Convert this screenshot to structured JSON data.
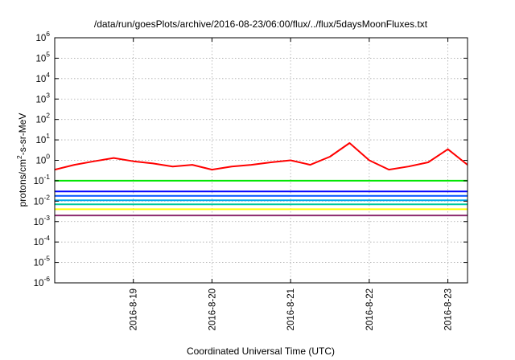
{
  "chart_data": {
    "type": "line",
    "title": "/data/run/goesPlots/archive/2016-08-23/06:00/flux/../flux/5daysMoonFluxes.txt",
    "xlabel": "Coordinated Universal Time (UTC)",
    "ylabel": {
      "prefix": "protons/cm",
      "sup": "2",
      "suffix": "-s-sr-MeV"
    },
    "y_scale": "log",
    "ylim": [
      1e-06,
      1000000.0
    ],
    "y_ticks": [
      {
        "base": "10",
        "exp": "-6",
        "value": 1e-06
      },
      {
        "base": "10",
        "exp": "-5",
        "value": 1e-05
      },
      {
        "base": "10",
        "exp": "-4",
        "value": 0.0001
      },
      {
        "base": "10",
        "exp": "-3",
        "value": 0.001
      },
      {
        "base": "10",
        "exp": "-2",
        "value": 0.01
      },
      {
        "base": "10",
        "exp": "-1",
        "value": 0.1
      },
      {
        "base": "10",
        "exp": "0",
        "value": 1
      },
      {
        "base": "10",
        "exp": "1",
        "value": 10
      },
      {
        "base": "10",
        "exp": "2",
        "value": 100
      },
      {
        "base": "10",
        "exp": "3",
        "value": 1000
      },
      {
        "base": "10",
        "exp": "4",
        "value": 10000
      },
      {
        "base": "10",
        "exp": "5",
        "value": 100000
      },
      {
        "base": "10",
        "exp": "6",
        "value": 1000000
      }
    ],
    "xlim": [
      "2016-08-18T00:00",
      "2016-08-23T06:00"
    ],
    "x_ticks": [
      "2016-8-19",
      "2016-8-20",
      "2016-8-21",
      "2016-8-22",
      "2016-8-23"
    ],
    "grid": true,
    "series": [
      {
        "color": "#ff0000",
        "x": [
          "2016-08-18T00:00",
          "2016-08-18T06:00",
          "2016-08-18T12:00",
          "2016-08-18T18:00",
          "2016-08-19T00:00",
          "2016-08-19T06:00",
          "2016-08-19T12:00",
          "2016-08-19T18:00",
          "2016-08-20T00:00",
          "2016-08-20T06:00",
          "2016-08-20T12:00",
          "2016-08-20T18:00",
          "2016-08-21T00:00",
          "2016-08-21T06:00",
          "2016-08-21T12:00",
          "2016-08-21T18:00",
          "2016-08-22T00:00",
          "2016-08-22T06:00",
          "2016-08-22T12:00",
          "2016-08-22T18:00",
          "2016-08-23T00:00",
          "2016-08-23T06:00"
        ],
        "values": [
          0.35,
          0.6,
          0.9,
          1.3,
          0.9,
          0.7,
          0.5,
          0.6,
          0.35,
          0.5,
          0.6,
          0.8,
          1.0,
          0.6,
          1.5,
          7,
          1.0,
          0.35,
          0.5,
          0.8,
          3.5,
          0.6
        ]
      },
      {
        "color": "#00e600",
        "x": [
          "2016-08-18T00:00",
          "2016-08-23T06:00"
        ],
        "values": [
          0.1,
          0.1
        ]
      },
      {
        "color": "#0000ff",
        "x": [
          "2016-08-18T00:00",
          "2016-08-23T06:00"
        ],
        "values": [
          0.03,
          0.03
        ]
      },
      {
        "color": "#0050ff",
        "x": [
          "2016-08-18T00:00",
          "2016-08-23T06:00"
        ],
        "values": [
          0.018,
          0.018
        ]
      },
      {
        "color": "#00aaee",
        "x": [
          "2016-08-18T00:00",
          "2016-08-23T06:00"
        ],
        "values": [
          0.011,
          0.011
        ]
      },
      {
        "color": "#00c8a0",
        "x": [
          "2016-08-18T00:00",
          "2016-08-23T06:00"
        ],
        "values": [
          0.007,
          0.007
        ]
      },
      {
        "color": "#ffff00",
        "x": [
          "2016-08-18T00:00",
          "2016-08-23T06:00"
        ],
        "values": [
          0.004,
          0.004
        ]
      },
      {
        "color": "#8b2a6e",
        "x": [
          "2016-08-18T00:00",
          "2016-08-23T06:00"
        ],
        "values": [
          0.002,
          0.002
        ]
      }
    ]
  }
}
